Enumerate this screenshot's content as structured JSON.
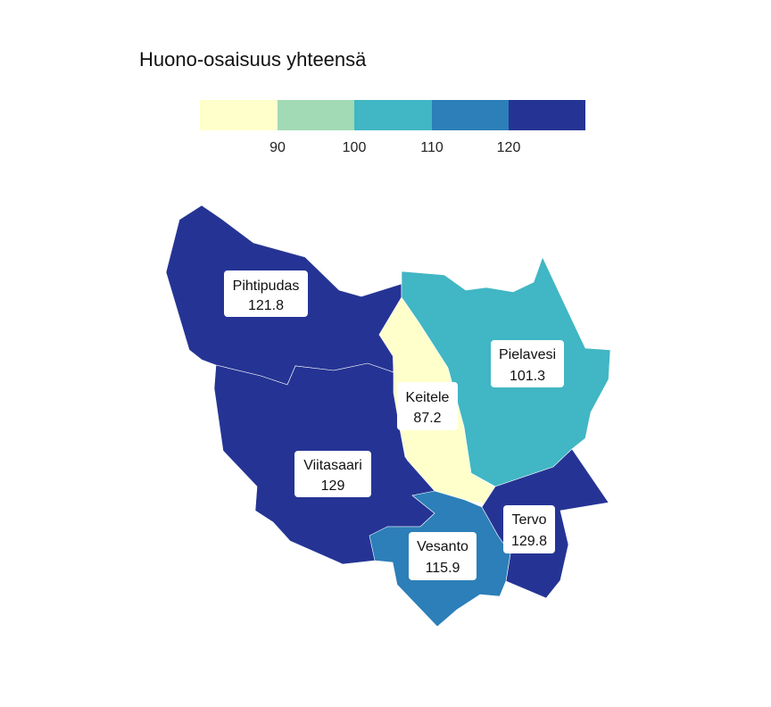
{
  "title": "Huono-osaisuus yhteensä",
  "colors": [
    "#ffffcc",
    "#a1dab4",
    "#41b6c4",
    "#2c7fb8",
    "#253494"
  ],
  "chart_data": {
    "type": "choropleth",
    "title": "Huono-osaisuus yhteensä",
    "legend": {
      "placement": "top",
      "breaks": [
        90,
        100,
        110,
        120
      ],
      "tick_labels": [
        "90",
        "100",
        "110",
        "120"
      ]
    },
    "regions": [
      {
        "name": "Pihtipudas",
        "value": "121.8"
      },
      {
        "name": "Pielavesi",
        "value": "101.3"
      },
      {
        "name": "Keitele",
        "value": "87.2"
      },
      {
        "name": "Viitasaari",
        "value": "129"
      },
      {
        "name": "Tervo",
        "value": "129.8"
      },
      {
        "name": "Vesanto",
        "value": "115.9"
      }
    ]
  }
}
